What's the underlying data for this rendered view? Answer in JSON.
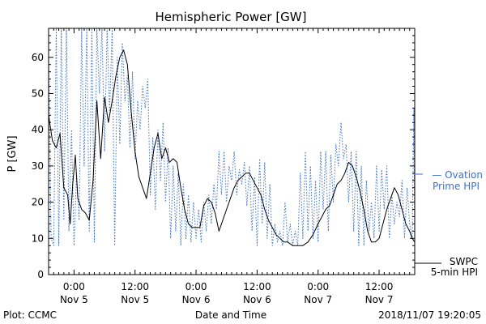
{
  "chart_data": {
    "type": "line",
    "title": "Hemispheric Power [GW]",
    "xlabel": "Date and Time",
    "ylabel": "P [GW]",
    "xlim": [
      "2018-11-04T19:00",
      "2018-11-07T19:00"
    ],
    "ylim": [
      0,
      68
    ],
    "yticks": [
      0,
      10,
      20,
      30,
      40,
      50,
      60
    ],
    "xticks": [
      {
        "time": "2018-11-05T00:00",
        "line1": "0:00",
        "line2": "Nov 5"
      },
      {
        "time": "2018-11-05T12:00",
        "line1": "12:00",
        "line2": "Nov 5"
      },
      {
        "time": "2018-11-06T00:00",
        "line1": "0:00",
        "line2": "Nov 6"
      },
      {
        "time": "2018-11-06T12:00",
        "line1": "12:00",
        "line2": "Nov 6"
      },
      {
        "time": "2018-11-07T00:00",
        "line1": "0:00",
        "line2": "Nov 7"
      },
      {
        "time": "2018-11-07T12:00",
        "line1": "12:00",
        "line2": "Nov 7"
      }
    ],
    "series": [
      {
        "name": "SWPC 5-min HPI",
        "label_lines": [
          "SWPC",
          "5-min HPI"
        ],
        "color": "#000000",
        "style": "solid",
        "points": [
          [
            "2018-11-04T19:00",
            44
          ],
          [
            "2018-11-04T19:45",
            37
          ],
          [
            "2018-11-04T20:30",
            35
          ],
          [
            "2018-11-04T21:15",
            39
          ],
          [
            "2018-11-04T22:00",
            24
          ],
          [
            "2018-11-04T22:45",
            22
          ],
          [
            "2018-11-04T23:15",
            14
          ],
          [
            "2018-11-04T23:45",
            25
          ],
          [
            "2018-11-05T00:15",
            33
          ],
          [
            "2018-11-05T00:45",
            21
          ],
          [
            "2018-11-05T01:30",
            18
          ],
          [
            "2018-11-05T02:15",
            17
          ],
          [
            "2018-11-05T03:00",
            15
          ],
          [
            "2018-11-05T03:45",
            26
          ],
          [
            "2018-11-05T04:30",
            48
          ],
          [
            "2018-11-05T05:15",
            32
          ],
          [
            "2018-11-05T06:00",
            49
          ],
          [
            "2018-11-05T06:45",
            42
          ],
          [
            "2018-11-05T07:30",
            48
          ],
          [
            "2018-11-05T08:15",
            55
          ],
          [
            "2018-11-05T09:00",
            60
          ],
          [
            "2018-11-05T09:45",
            62
          ],
          [
            "2018-11-05T10:30",
            58
          ],
          [
            "2018-11-05T11:15",
            45
          ],
          [
            "2018-11-05T12:00",
            34
          ],
          [
            "2018-11-05T12:45",
            27
          ],
          [
            "2018-11-05T13:30",
            24
          ],
          [
            "2018-11-05T14:15",
            21
          ],
          [
            "2018-11-05T15:00",
            28
          ],
          [
            "2018-11-05T15:45",
            35
          ],
          [
            "2018-11-05T16:30",
            39
          ],
          [
            "2018-11-05T17:15",
            32
          ],
          [
            "2018-11-05T18:00",
            35
          ],
          [
            "2018-11-05T18:45",
            31
          ],
          [
            "2018-11-05T19:30",
            32
          ],
          [
            "2018-11-05T20:15",
            31
          ],
          [
            "2018-11-05T21:00",
            24
          ],
          [
            "2018-11-05T21:45",
            18
          ],
          [
            "2018-11-05T22:30",
            14
          ],
          [
            "2018-11-05T23:15",
            13
          ],
          [
            "2018-11-06T00:00",
            13
          ],
          [
            "2018-11-06T00:45",
            13
          ],
          [
            "2018-11-06T01:30",
            19
          ],
          [
            "2018-11-06T02:15",
            21
          ],
          [
            "2018-11-06T03:00",
            20
          ],
          [
            "2018-11-06T03:45",
            17
          ],
          [
            "2018-11-06T04:30",
            12
          ],
          [
            "2018-11-06T05:15",
            15
          ],
          [
            "2018-11-06T06:00",
            18
          ],
          [
            "2018-11-06T06:45",
            21
          ],
          [
            "2018-11-06T07:30",
            24
          ],
          [
            "2018-11-06T08:15",
            26
          ],
          [
            "2018-11-06T09:00",
            27
          ],
          [
            "2018-11-06T09:45",
            28
          ],
          [
            "2018-11-06T10:30",
            28
          ],
          [
            "2018-11-06T11:15",
            26
          ],
          [
            "2018-11-06T12:00",
            24
          ],
          [
            "2018-11-06T12:45",
            22
          ],
          [
            "2018-11-06T13:30",
            18
          ],
          [
            "2018-11-06T14:15",
            15
          ],
          [
            "2018-11-06T15:00",
            13
          ],
          [
            "2018-11-06T15:45",
            11
          ],
          [
            "2018-11-06T16:30",
            10
          ],
          [
            "2018-11-06T17:15",
            9
          ],
          [
            "2018-11-06T18:00",
            9
          ],
          [
            "2018-11-06T19:00",
            8
          ],
          [
            "2018-11-06T20:00",
            8
          ],
          [
            "2018-11-06T21:00",
            8
          ],
          [
            "2018-11-06T22:00",
            9
          ],
          [
            "2018-11-06T23:00",
            11
          ],
          [
            "2018-11-07T00:00",
            14
          ],
          [
            "2018-11-07T00:45",
            16
          ],
          [
            "2018-11-07T01:30",
            18
          ],
          [
            "2018-11-07T02:15",
            19
          ],
          [
            "2018-11-07T03:00",
            22
          ],
          [
            "2018-11-07T03:45",
            25
          ],
          [
            "2018-11-07T04:30",
            26
          ],
          [
            "2018-11-07T05:15",
            28
          ],
          [
            "2018-11-07T06:00",
            31
          ],
          [
            "2018-11-07T06:45",
            30
          ],
          [
            "2018-11-07T07:30",
            27
          ],
          [
            "2018-11-07T08:15",
            23
          ],
          [
            "2018-11-07T09:00",
            18
          ],
          [
            "2018-11-07T09:45",
            12
          ],
          [
            "2018-11-07T10:30",
            9
          ],
          [
            "2018-11-07T11:15",
            9
          ],
          [
            "2018-11-07T12:00",
            10
          ],
          [
            "2018-11-07T12:45",
            14
          ],
          [
            "2018-11-07T13:30",
            18
          ],
          [
            "2018-11-07T14:15",
            21
          ],
          [
            "2018-11-07T15:00",
            24
          ],
          [
            "2018-11-07T15:45",
            22
          ],
          [
            "2018-11-07T16:30",
            18
          ],
          [
            "2018-11-07T17:15",
            14
          ],
          [
            "2018-11-07T18:00",
            12
          ],
          [
            "2018-11-07T18:30",
            10
          ],
          [
            "2018-11-07T19:00",
            9
          ]
        ]
      },
      {
        "name": "Ovation Prime HPI",
        "label_lines": [
          "— Ovation",
          "Prime HPI"
        ],
        "color": "#3a6fd0",
        "style": "dotted",
        "points": [
          [
            "2018-11-04T19:00",
            62
          ],
          [
            "2018-11-04T19:30",
            10
          ],
          [
            "2018-11-04T20:00",
            8
          ],
          [
            "2018-11-04T20:30",
            68
          ],
          [
            "2018-11-04T21:00",
            8
          ],
          [
            "2018-11-04T21:30",
            68
          ],
          [
            "2018-11-04T22:00",
            15
          ],
          [
            "2018-11-04T22:30",
            68
          ],
          [
            "2018-11-04T23:00",
            12
          ],
          [
            "2018-11-04T23:30",
            40
          ],
          [
            "2018-11-05T00:00",
            8
          ],
          [
            "2018-11-05T00:30",
            28
          ],
          [
            "2018-11-05T01:00",
            15
          ],
          [
            "2018-11-05T01:30",
            68
          ],
          [
            "2018-11-05T02:00",
            30
          ],
          [
            "2018-11-05T02:30",
            68
          ],
          [
            "2018-11-05T03:00",
            12
          ],
          [
            "2018-11-05T03:30",
            68
          ],
          [
            "2018-11-05T04:00",
            9
          ],
          [
            "2018-11-05T04:30",
            68
          ],
          [
            "2018-11-05T05:00",
            50
          ],
          [
            "2018-11-05T05:30",
            68
          ],
          [
            "2018-11-05T06:00",
            34
          ],
          [
            "2018-11-05T06:30",
            68
          ],
          [
            "2018-11-05T07:00",
            45
          ],
          [
            "2018-11-05T07:30",
            68
          ],
          [
            "2018-11-05T08:00",
            8
          ],
          [
            "2018-11-05T08:30",
            60
          ],
          [
            "2018-11-05T09:00",
            36
          ],
          [
            "2018-11-05T09:30",
            64
          ],
          [
            "2018-11-05T10:00",
            48
          ],
          [
            "2018-11-05T10:30",
            55
          ],
          [
            "2018-11-05T11:00",
            35
          ],
          [
            "2018-11-05T11:30",
            56
          ],
          [
            "2018-11-05T12:00",
            32
          ],
          [
            "2018-11-05T12:30",
            48
          ],
          [
            "2018-11-05T13:00",
            40
          ],
          [
            "2018-11-05T13:30",
            52
          ],
          [
            "2018-11-05T14:00",
            46
          ],
          [
            "2018-11-05T14:30",
            54
          ],
          [
            "2018-11-05T15:00",
            22
          ],
          [
            "2018-11-05T15:30",
            38
          ],
          [
            "2018-11-05T16:00",
            18
          ],
          [
            "2018-11-05T16:30",
            40
          ],
          [
            "2018-11-05T17:00",
            26
          ],
          [
            "2018-11-05T17:30",
            42
          ],
          [
            "2018-11-05T18:00",
            20
          ],
          [
            "2018-11-05T18:30",
            35
          ],
          [
            "2018-11-05T19:00",
            10
          ],
          [
            "2018-11-05T19:30",
            30
          ],
          [
            "2018-11-05T20:00",
            12
          ],
          [
            "2018-11-05T20:30",
            28
          ],
          [
            "2018-11-05T21:00",
            8
          ],
          [
            "2018-11-05T21:30",
            25
          ],
          [
            "2018-11-05T22:00",
            10
          ],
          [
            "2018-11-05T22:30",
            22
          ],
          [
            "2018-11-05T23:00",
            9
          ],
          [
            "2018-11-05T23:30",
            20
          ],
          [
            "2018-11-06T00:00",
            10
          ],
          [
            "2018-11-06T00:30",
            18
          ],
          [
            "2018-11-06T01:00",
            9
          ],
          [
            "2018-11-06T01:30",
            20
          ],
          [
            "2018-11-06T02:00",
            12
          ],
          [
            "2018-11-06T02:30",
            22
          ],
          [
            "2018-11-06T03:00",
            14
          ],
          [
            "2018-11-06T03:30",
            25
          ],
          [
            "2018-11-06T04:00",
            18
          ],
          [
            "2018-11-06T04:30",
            34
          ],
          [
            "2018-11-06T05:00",
            22
          ],
          [
            "2018-11-06T05:30",
            34
          ],
          [
            "2018-11-06T06:00",
            20
          ],
          [
            "2018-11-06T06:30",
            30
          ],
          [
            "2018-11-06T07:00",
            26
          ],
          [
            "2018-11-06T07:30",
            34
          ],
          [
            "2018-11-06T08:00",
            22
          ],
          [
            "2018-11-06T08:30",
            29
          ],
          [
            "2018-11-06T09:00",
            25
          ],
          [
            "2018-11-06T09:30",
            31
          ],
          [
            "2018-11-06T10:00",
            19
          ],
          [
            "2018-11-06T10:30",
            30
          ],
          [
            "2018-11-06T11:00",
            12
          ],
          [
            "2018-11-06T11:30",
            27
          ],
          [
            "2018-11-06T12:00",
            8
          ],
          [
            "2018-11-06T12:30",
            32
          ],
          [
            "2018-11-06T13:00",
            14
          ],
          [
            "2018-11-06T13:30",
            31
          ],
          [
            "2018-11-06T14:00",
            10
          ],
          [
            "2018-11-06T14:30",
            25
          ],
          [
            "2018-11-06T15:00",
            8
          ],
          [
            "2018-11-06T15:30",
            14
          ],
          [
            "2018-11-06T16:00",
            9
          ],
          [
            "2018-11-06T16:30",
            12
          ],
          [
            "2018-11-06T17:00",
            8
          ],
          [
            "2018-11-06T17:30",
            20
          ],
          [
            "2018-11-06T18:00",
            9
          ],
          [
            "2018-11-06T18:30",
            14
          ],
          [
            "2018-11-06T19:00",
            8
          ],
          [
            "2018-11-06T19:30",
            12
          ],
          [
            "2018-11-06T20:00",
            8
          ],
          [
            "2018-11-06T20:30",
            28
          ],
          [
            "2018-11-06T21:00",
            10
          ],
          [
            "2018-11-06T21:30",
            34
          ],
          [
            "2018-11-06T22:00",
            12
          ],
          [
            "2018-11-06T22:30",
            30
          ],
          [
            "2018-11-06T23:00",
            10
          ],
          [
            "2018-11-06T23:30",
            26
          ],
          [
            "2018-11-07T00:00",
            9
          ],
          [
            "2018-11-07T00:30",
            34
          ],
          [
            "2018-11-07T01:00",
            18
          ],
          [
            "2018-11-07T01:30",
            34
          ],
          [
            "2018-11-07T02:00",
            12
          ],
          [
            "2018-11-07T02:30",
            33
          ],
          [
            "2018-11-07T03:00",
            20
          ],
          [
            "2018-11-07T03:30",
            36
          ],
          [
            "2018-11-07T04:00",
            30
          ],
          [
            "2018-11-07T04:30",
            42
          ],
          [
            "2018-11-07T05:00",
            32
          ],
          [
            "2018-11-07T05:30",
            36
          ],
          [
            "2018-11-07T06:00",
            20
          ],
          [
            "2018-11-07T06:30",
            34
          ],
          [
            "2018-11-07T07:00",
            12
          ],
          [
            "2018-11-07T07:30",
            34
          ],
          [
            "2018-11-07T08:00",
            8
          ],
          [
            "2018-11-07T08:30",
            30
          ],
          [
            "2018-11-07T09:00",
            8
          ],
          [
            "2018-11-07T09:30",
            26
          ],
          [
            "2018-11-07T10:00",
            12
          ],
          [
            "2018-11-07T10:30",
            20
          ],
          [
            "2018-11-07T11:00",
            10
          ],
          [
            "2018-11-07T11:30",
            30
          ],
          [
            "2018-11-07T12:00",
            12
          ],
          [
            "2018-11-07T12:30",
            29
          ],
          [
            "2018-11-07T13:00",
            18
          ],
          [
            "2018-11-07T13:30",
            30
          ],
          [
            "2018-11-07T14:00",
            10
          ],
          [
            "2018-11-07T14:30",
            22
          ],
          [
            "2018-11-07T15:00",
            14
          ],
          [
            "2018-11-07T15:30",
            20
          ],
          [
            "2018-11-07T16:00",
            16
          ],
          [
            "2018-11-07T16:30",
            26
          ],
          [
            "2018-11-07T17:00",
            10
          ],
          [
            "2018-11-07T17:30",
            24
          ],
          [
            "2018-11-07T18:00",
            14
          ],
          [
            "2018-11-07T18:30",
            10
          ],
          [
            "2018-11-07T18:50",
            46
          ],
          [
            "2018-11-07T19:00",
            10
          ]
        ]
      }
    ],
    "grid": false,
    "legend": "right"
  },
  "footer": {
    "credit": "Plot: CCMC",
    "timestamp": "2018/11/07 19:20:05"
  }
}
